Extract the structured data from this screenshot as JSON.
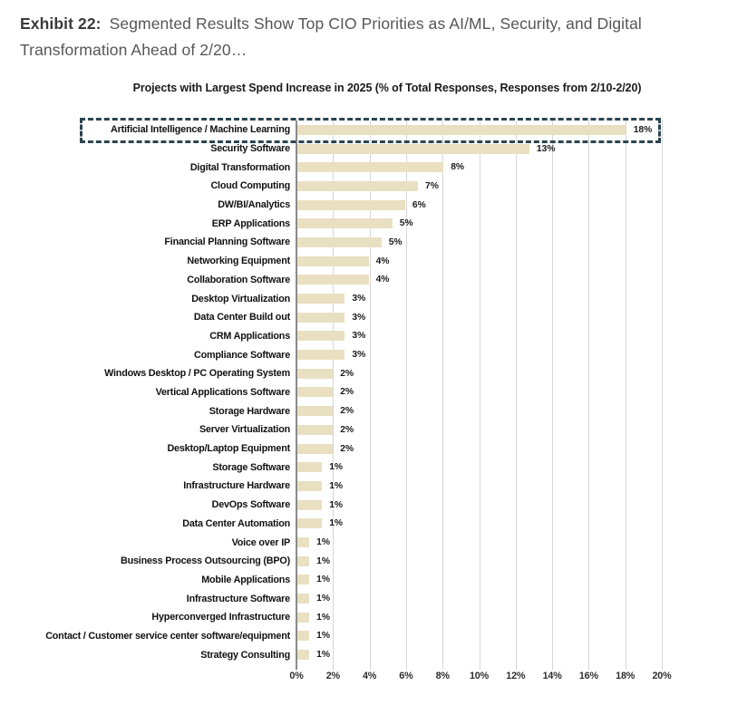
{
  "exhibit": {
    "label": "Exhibit 22:",
    "title": "Segmented Results Show Top CIO Priorities as AI/ML, Security, and Digital Transformation Ahead of 2/20…"
  },
  "chart_data": {
    "type": "bar",
    "orientation": "horizontal",
    "title": "Projects with Largest Spend Increase in 2025 (% of Total Responses, Responses from 2/10-2/20)",
    "categories": [
      "Artificial Intelligence / Machine Learning",
      "Security Software",
      "Digital Transformation",
      "Cloud Computing",
      "DW/BI/Analytics",
      "ERP Applications",
      "Financial Planning Software",
      "Networking Equipment",
      "Collaboration Software",
      "Desktop Virtualization",
      "Data Center Build out",
      "CRM Applications",
      "Compliance Software",
      "Windows Desktop / PC Operating System",
      "Vertical Applications Software",
      "Storage Hardware",
      "Server Virtualization",
      "Desktop/Laptop Equipment",
      "Storage Software",
      "Infrastructure Hardware",
      "DevOps Software",
      "Data Center Automation",
      "Voice over IP",
      "Business Process Outsourcing (BPO)",
      "Mobile Applications",
      "Infrastructure Software",
      "Hyperconverged Infrastructure",
      "Contact / Customer service center software/equipment",
      "Strategy Consulting"
    ],
    "values": [
      18.0,
      12.7,
      8.0,
      6.6,
      5.9,
      5.2,
      4.6,
      3.9,
      3.9,
      2.6,
      2.6,
      2.6,
      2.6,
      1.95,
      1.95,
      1.95,
      1.95,
      1.95,
      1.35,
      1.35,
      1.35,
      1.35,
      0.65,
      0.65,
      0.65,
      0.65,
      0.65,
      0.65,
      0.65
    ],
    "value_labels": [
      "18%",
      "13%",
      "8%",
      "7%",
      "6%",
      "5%",
      "5%",
      "4%",
      "4%",
      "3%",
      "3%",
      "3%",
      "3%",
      "2%",
      "2%",
      "2%",
      "2%",
      "2%",
      "1%",
      "1%",
      "1%",
      "1%",
      "1%",
      "1%",
      "1%",
      "1%",
      "1%",
      "1%",
      "1%"
    ],
    "x_ticks": [
      "0%",
      "2%",
      "4%",
      "6%",
      "8%",
      "10%",
      "12%",
      "14%",
      "16%",
      "18%",
      "20%"
    ],
    "xlim": [
      0,
      20
    ],
    "grid": "vertical",
    "legend": "none",
    "highlight_category": "Artificial Intelligence / Machine Learning",
    "bar_color": "#e8e0c1",
    "highlight_box_color": "#2b4452"
  }
}
